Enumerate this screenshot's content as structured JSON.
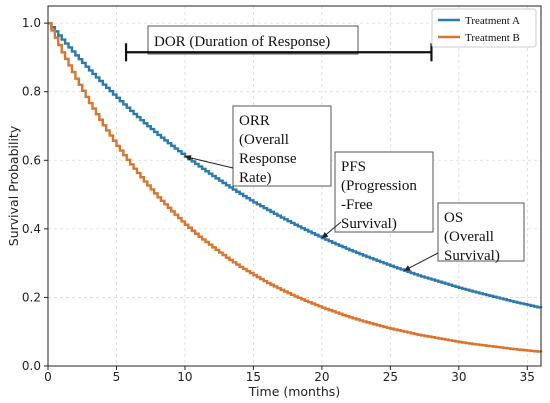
{
  "chart_data": {
    "type": "line",
    "xlabel": "Time (months)",
    "ylabel": "Survival Probability",
    "xlim": [
      0,
      36
    ],
    "ylim": [
      0,
      1.05
    ],
    "xticks": [
      0,
      5,
      10,
      15,
      20,
      25,
      30,
      35
    ],
    "yticks": [
      0.0,
      0.2,
      0.4,
      0.6,
      0.8,
      1.0
    ],
    "grid": true,
    "legend_position": "top-right",
    "step": true,
    "series": [
      {
        "name": "Treatment A",
        "color": "#2a7ab0",
        "x": [
          0,
          1,
          2,
          3,
          4,
          5,
          6,
          7,
          8,
          9,
          10,
          11,
          12,
          13,
          14,
          15,
          16,
          17,
          18,
          19,
          20,
          21,
          22,
          23,
          24,
          25,
          26,
          27,
          28,
          29,
          30,
          31,
          32,
          33,
          34,
          35,
          36
        ],
        "values": [
          1.0,
          0.952,
          0.906,
          0.862,
          0.821,
          0.782,
          0.744,
          0.708,
          0.674,
          0.642,
          0.611,
          0.582,
          0.554,
          0.527,
          0.502,
          0.477,
          0.455,
          0.433,
          0.412,
          0.392,
          0.373,
          0.355,
          0.338,
          0.322,
          0.307,
          0.292,
          0.278,
          0.264,
          0.252,
          0.24,
          0.228,
          0.217,
          0.207,
          0.197,
          0.187,
          0.178,
          0.169
        ]
      },
      {
        "name": "Treatment B",
        "color": "#d9762b",
        "x": [
          0,
          1,
          2,
          3,
          4,
          5,
          6,
          7,
          8,
          9,
          10,
          11,
          12,
          13,
          14,
          15,
          16,
          17,
          18,
          19,
          20,
          21,
          22,
          23,
          24,
          25,
          26,
          27,
          28,
          29,
          30,
          31,
          32,
          33,
          34,
          35,
          36
        ],
        "values": [
          1.0,
          0.915,
          0.838,
          0.767,
          0.702,
          0.642,
          0.588,
          0.538,
          0.492,
          0.451,
          0.412,
          0.377,
          0.346,
          0.316,
          0.289,
          0.265,
          0.242,
          0.222,
          0.203,
          0.186,
          0.17,
          0.156,
          0.142,
          0.13,
          0.119,
          0.109,
          0.1,
          0.091,
          0.084,
          0.077,
          0.07,
          0.064,
          0.059,
          0.054,
          0.049,
          0.045,
          0.041
        ]
      }
    ],
    "annotations": {
      "dor": {
        "label": "DOR (Duration of Response)",
        "start": 5.7,
        "end": 28.0,
        "y": 0.915
      },
      "orr": {
        "lines": [
          "ORR",
          "(Overall",
          "Response",
          "Rate)"
        ],
        "target_x": 10.0,
        "target_y": 0.611
      },
      "pfs": {
        "lines": [
          "PFS",
          "(Progression",
          "-Free",
          "Survival)"
        ],
        "target_x": 20.0,
        "target_y": 0.373
      },
      "os": {
        "lines": [
          "OS",
          "(Overall",
          "Survival)"
        ],
        "target_x": 26.0,
        "target_y": 0.278
      }
    }
  }
}
